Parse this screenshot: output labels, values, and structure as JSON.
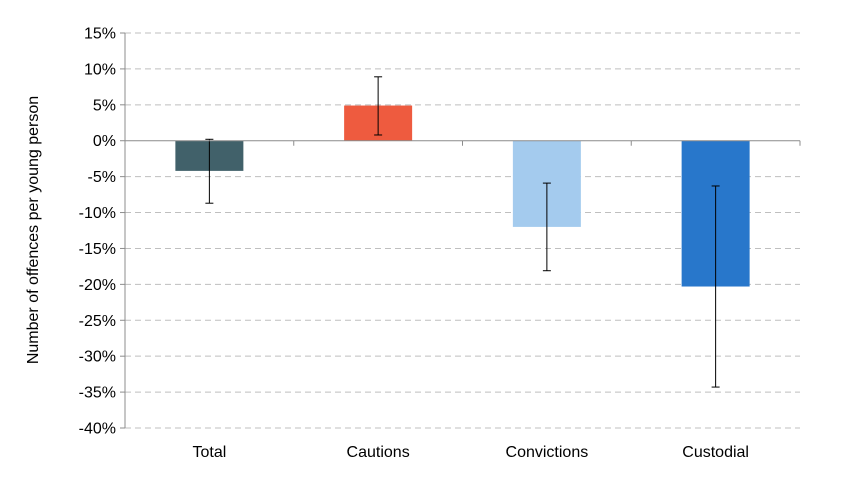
{
  "chart_data": {
    "type": "bar",
    "title": "",
    "xlabel": "",
    "ylabel": "Number of offences per young person",
    "categories": [
      "Total",
      "Cautions",
      "Convictions",
      "Custodial"
    ],
    "values": [
      -4.2,
      4.9,
      -12.0,
      -20.3
    ],
    "error_low": [
      -8.7,
      0.8,
      -18.1,
      -34.3
    ],
    "error_high": [
      0.2,
      8.9,
      -5.9,
      -6.3
    ],
    "bar_colors": [
      "#41616A",
      "#EE5B3F",
      "#A4CBEE",
      "#2877CB"
    ],
    "ylim": [
      -40,
      15
    ],
    "yticks": [
      15,
      10,
      5,
      0,
      -5,
      -10,
      -15,
      -20,
      -25,
      -30,
      -35,
      -40
    ],
    "ytick_labels": [
      "15%",
      "10%",
      "5%",
      "0%",
      "-5%",
      "-10%",
      "-15%",
      "-20%",
      "-25%",
      "-30%",
      "-35%",
      "-40%"
    ],
    "grid": true,
    "grid_style": "dashed",
    "legend": "none"
  }
}
